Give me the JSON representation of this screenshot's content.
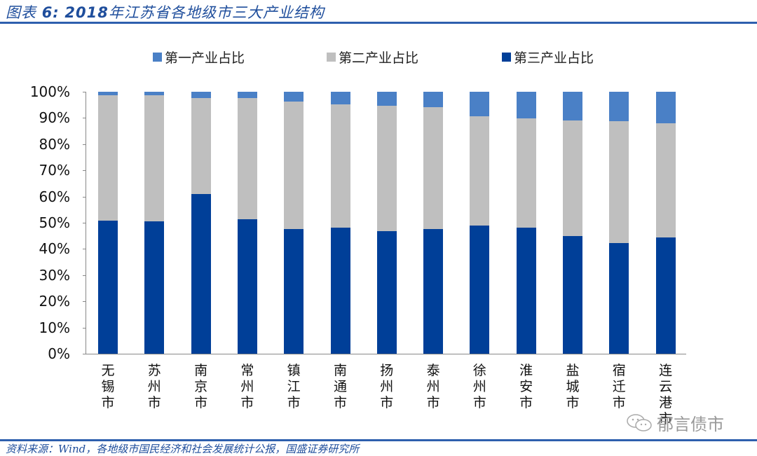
{
  "header": {
    "title_prefix": "图表",
    "title_num": "6:",
    "title_year": "2018",
    "title_text": "年江苏省各地级市三大产业结构"
  },
  "footer": {
    "source": "资料来源：Wind，各地级市国民经济和社会发展统计公报，国盛证券研究所"
  },
  "watermark": {
    "icon": "wechat-icon",
    "text": "郁言债市"
  },
  "colors": {
    "primary": "#4a80c6",
    "secondary": "#bfbfbf",
    "tertiary": "#003f98",
    "title": "#1f4e9c"
  },
  "legend": [
    {
      "label": "第一产业占比",
      "color": "#4a80c6"
    },
    {
      "label": "第二产业占比",
      "color": "#bfbfbf"
    },
    {
      "label": "第三产业占比",
      "color": "#003f98"
    }
  ],
  "yaxis": {
    "ticks": [
      "100%",
      "90%",
      "80%",
      "70%",
      "60%",
      "50%",
      "40%",
      "30%",
      "20%",
      "10%",
      "0%"
    ]
  },
  "chart_data": {
    "type": "bar",
    "stacked": true,
    "title": "2018年江苏省各地级市三大产业结构",
    "xlabel": "",
    "ylabel": "",
    "ylim": [
      0,
      100
    ],
    "y_unit": "%",
    "grid": false,
    "legend_position": "top",
    "categories": [
      "无锡市",
      "苏州市",
      "南京市",
      "常州市",
      "镇江市",
      "南通市",
      "扬州市",
      "泰州市",
      "徐州市",
      "淮安市",
      "盐城市",
      "宿迁市",
      "连云港市"
    ],
    "series": [
      {
        "name": "第三产业占比",
        "values": [
          50.8,
          50.5,
          61.0,
          51.3,
          47.6,
          48.1,
          46.8,
          47.6,
          48.9,
          48.1,
          44.9,
          42.2,
          44.4
        ]
      },
      {
        "name": "第二产业占比",
        "values": [
          47.9,
          48.2,
          36.6,
          46.3,
          48.7,
          47.1,
          47.9,
          46.5,
          41.7,
          41.7,
          44.1,
          46.6,
          43.6
        ]
      },
      {
        "name": "第一产业占比",
        "values": [
          1.3,
          1.3,
          2.4,
          2.4,
          3.7,
          4.8,
          5.3,
          5.9,
          9.4,
          10.2,
          11.0,
          11.2,
          12.0
        ]
      }
    ],
    "source": "Wind，各地级市国民经济和社会发展统计公报，国盛证券研究所"
  }
}
